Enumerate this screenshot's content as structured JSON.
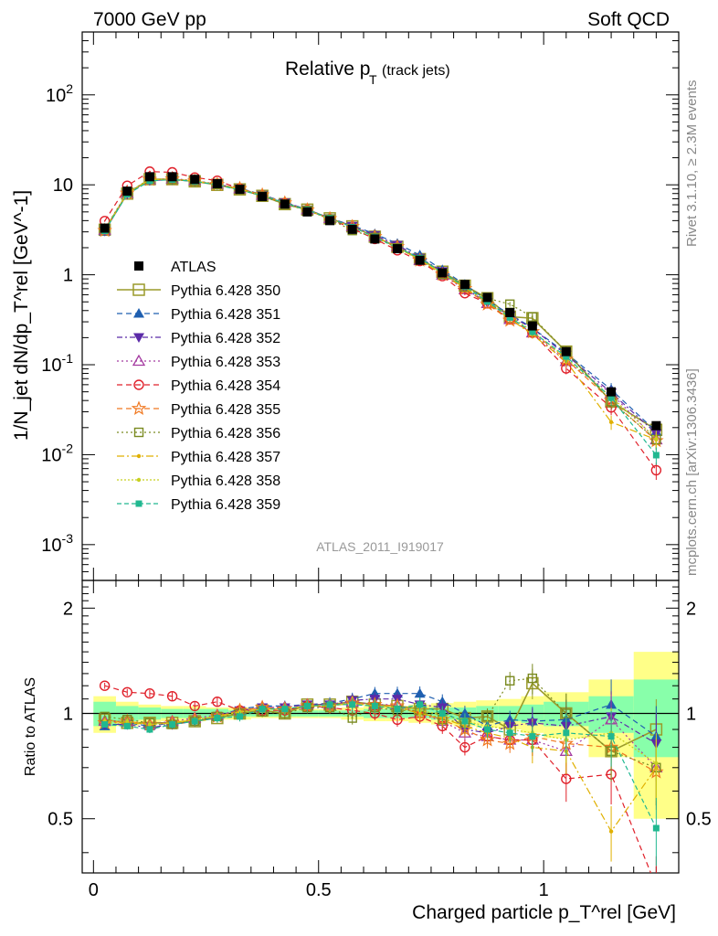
{
  "header": {
    "left": "7000 GeV pp",
    "right": "Soft QCD"
  },
  "side_labels": {
    "rivet": "Rivet 3.1.10, ≥ 2.3M events",
    "mcplots": "mcplots.cern.ch [arXiv:1306.3436]"
  },
  "top_plot": {
    "title_main": "Relative p",
    "title_sub": "T",
    "title_extra": "(track jets)",
    "ylabel": "1/N_jet dN/dp_T^rel [GeV^-1]",
    "watermark": "ATLAS_2011_I919017",
    "yticks": [
      "10^-3",
      "10^-2",
      "10^-1",
      "1",
      "10",
      "10^2"
    ]
  },
  "ratio_plot": {
    "ylabel": "Ratio to ATLAS",
    "yticks": [
      "0.5",
      "1",
      "2"
    ]
  },
  "xaxis": {
    "label": "Charged particle p_T^rel [GeV]",
    "ticks": [
      "0",
      "0.5",
      "1"
    ]
  },
  "legend": [
    {
      "label": "ATLAS",
      "color": "#000000",
      "marker": "filled-square",
      "dash": "none"
    },
    {
      "label": "Pythia 6.428 350",
      "color": "#9a9a2a",
      "marker": "open-square",
      "dash": "solid"
    },
    {
      "label": "Pythia 6.428 351",
      "color": "#1f5fb0",
      "marker": "filled-triangle-up",
      "dash": "6,4"
    },
    {
      "label": "Pythia 6.428 352",
      "color": "#5b2aa8",
      "marker": "filled-triangle-down",
      "dash": "6,3,2,3"
    },
    {
      "label": "Pythia 6.428 353",
      "color": "#a43aa0",
      "marker": "open-triangle-up",
      "dash": "2,3"
    },
    {
      "label": "Pythia 6.428 354",
      "color": "#e0202a",
      "marker": "open-circle",
      "dash": "6,4"
    },
    {
      "label": "Pythia 6.428 355",
      "color": "#f07820",
      "marker": "open-star",
      "dash": "6,4"
    },
    {
      "label": "Pythia 6.428 356",
      "color": "#7a8a20",
      "marker": "open-square-small",
      "dash": "2,3"
    },
    {
      "label": "Pythia 6.428 357",
      "color": "#e0b000",
      "marker": "dot",
      "dash": "8,3,2,3"
    },
    {
      "label": "Pythia 6.428 358",
      "color": "#c8d020",
      "marker": "dot",
      "dash": "2,2"
    },
    {
      "label": "Pythia 6.428 359",
      "color": "#20b890",
      "marker": "filled-square-small",
      "dash": "5,3"
    }
  ],
  "chart_data": {
    "type": "line",
    "title": "Relative pT (track jets)",
    "xlabel": "Charged particle p_T^rel [GeV]",
    "ylabel": "1/N_jet dN/dp_T^rel [GeV^-1]",
    "xlim": [
      -0.025,
      1.3
    ],
    "ylim": [
      0.0004,
      500
    ],
    "yscale": "log",
    "ratio_ylim": [
      0.35,
      2.4
    ],
    "ratio_yscale": "log",
    "x": [
      0.025,
      0.075,
      0.125,
      0.175,
      0.225,
      0.275,
      0.325,
      0.375,
      0.425,
      0.475,
      0.525,
      0.575,
      0.625,
      0.675,
      0.725,
      0.775,
      0.825,
      0.875,
      0.925,
      0.975,
      1.05,
      1.15,
      1.25
    ],
    "data_series": {
      "name": "ATLAS",
      "values": [
        3.3,
        8.5,
        12.3,
        12.3,
        11.5,
        10.3,
        8.9,
        7.4,
        6.1,
        5.0,
        4.0,
        3.2,
        2.5,
        1.95,
        1.45,
        1.05,
        0.78,
        0.56,
        0.38,
        0.27,
        0.14,
        0.05,
        0.021
      ]
    },
    "band_edges": [
      0.0,
      0.05,
      0.1,
      0.15,
      0.2,
      0.25,
      0.3,
      0.35,
      0.4,
      0.45,
      0.5,
      0.55,
      0.6,
      0.65,
      0.7,
      0.75,
      0.8,
      0.85,
      0.9,
      0.95,
      1.0,
      1.1,
      1.2,
      1.3
    ],
    "band_inner": [
      0.08,
      0.05,
      0.04,
      0.03,
      0.03,
      0.03,
      0.02,
      0.02,
      0.02,
      0.02,
      0.02,
      0.02,
      0.03,
      0.03,
      0.03,
      0.04,
      0.04,
      0.05,
      0.05,
      0.06,
      0.08,
      0.12,
      0.25
    ],
    "band_outer": [
      0.12,
      0.08,
      0.06,
      0.05,
      0.05,
      0.04,
      0.04,
      0.03,
      0.03,
      0.03,
      0.03,
      0.04,
      0.05,
      0.05,
      0.06,
      0.07,
      0.08,
      0.09,
      0.1,
      0.12,
      0.15,
      0.25,
      0.5
    ],
    "mc_ratios": [
      {
        "name": "Pythia 6.428 350",
        "values": [
          0.96,
          0.94,
          0.94,
          0.94,
          0.95,
          0.97,
          1.0,
          1.02,
          1.0,
          1.06,
          1.06,
          1.08,
          1.06,
          1.05,
          1.03,
          1.03,
          0.97,
          0.98,
          0.9,
          1.22,
          1.0,
          0.78,
          0.9
        ]
      },
      {
        "name": "Pythia 6.428 351",
        "values": [
          0.92,
          0.94,
          0.92,
          0.94,
          0.96,
          0.98,
          1.03,
          1.05,
          1.05,
          1.06,
          1.07,
          1.1,
          1.14,
          1.14,
          1.14,
          1.08,
          1.0,
          0.92,
          0.96,
          0.95,
          0.96,
          1.06,
          0.86
        ]
      },
      {
        "name": "Pythia 6.428 352",
        "values": [
          0.93,
          0.93,
          0.91,
          0.93,
          0.95,
          0.98,
          1.02,
          1.04,
          1.04,
          1.06,
          1.06,
          1.09,
          1.1,
          1.1,
          1.06,
          1.04,
          0.9,
          0.88,
          0.92,
          0.94,
          0.92,
          0.98,
          0.82
        ]
      },
      {
        "name": "Pythia 6.428 353",
        "values": [
          0.95,
          0.95,
          0.93,
          0.95,
          0.97,
          0.99,
          1.02,
          1.04,
          1.04,
          1.06,
          1.06,
          1.08,
          1.06,
          1.06,
          1.0,
          0.95,
          0.88,
          0.86,
          0.84,
          0.84,
          0.78,
          0.96,
          0.7
        ]
      },
      {
        "name": "Pythia 6.428 354",
        "values": [
          1.2,
          1.15,
          1.14,
          1.12,
          1.05,
          1.08,
          1.02,
          1.02,
          1.02,
          1.05,
          1.04,
          1.02,
          1.0,
          0.96,
          0.98,
          0.92,
          0.8,
          0.86,
          0.84,
          0.84,
          0.65,
          0.67,
          0.32
        ]
      },
      {
        "name": "Pythia 6.428 355",
        "values": [
          0.94,
          0.95,
          0.93,
          0.94,
          0.96,
          0.98,
          1.02,
          1.04,
          1.03,
          1.05,
          1.05,
          1.07,
          1.06,
          1.05,
          1.0,
          0.96,
          0.9,
          0.84,
          0.82,
          0.86,
          0.82,
          0.8,
          0.68
        ]
      },
      {
        "name": "Pythia 6.428 356",
        "values": [
          0.98,
          0.96,
          0.94,
          0.93,
          0.95,
          0.98,
          1.0,
          1.01,
          1.0,
          1.04,
          1.04,
          0.97,
          1.04,
          1.02,
          1.02,
          0.96,
          0.94,
          0.98,
          1.24,
          1.26,
          1.0,
          0.78,
          0.7
        ]
      },
      {
        "name": "Pythia 6.428 357",
        "values": [
          0.94,
          0.94,
          0.93,
          0.94,
          0.96,
          0.98,
          1.01,
          1.03,
          1.03,
          1.05,
          1.05,
          1.07,
          1.05,
          1.04,
          1.0,
          0.97,
          0.92,
          0.88,
          0.85,
          0.8,
          0.78,
          0.46,
          0.7
        ]
      },
      {
        "name": "Pythia 6.428 358",
        "values": [
          0.95,
          0.95,
          0.93,
          0.94,
          0.96,
          0.98,
          1.01,
          1.03,
          1.03,
          1.05,
          1.05,
          1.07,
          1.05,
          1.04,
          1.02,
          0.99,
          0.95,
          0.92,
          0.9,
          0.88,
          0.84,
          0.88,
          0.72
        ]
      },
      {
        "name": "Pythia 6.428 359",
        "values": [
          0.93,
          0.92,
          0.9,
          0.93,
          0.95,
          0.97,
          0.98,
          1.03,
          1.03,
          1.05,
          1.06,
          1.06,
          1.05,
          1.03,
          1.06,
          1.0,
          0.95,
          0.9,
          0.88,
          0.86,
          0.88,
          0.86,
          0.47
        ]
      }
    ]
  }
}
